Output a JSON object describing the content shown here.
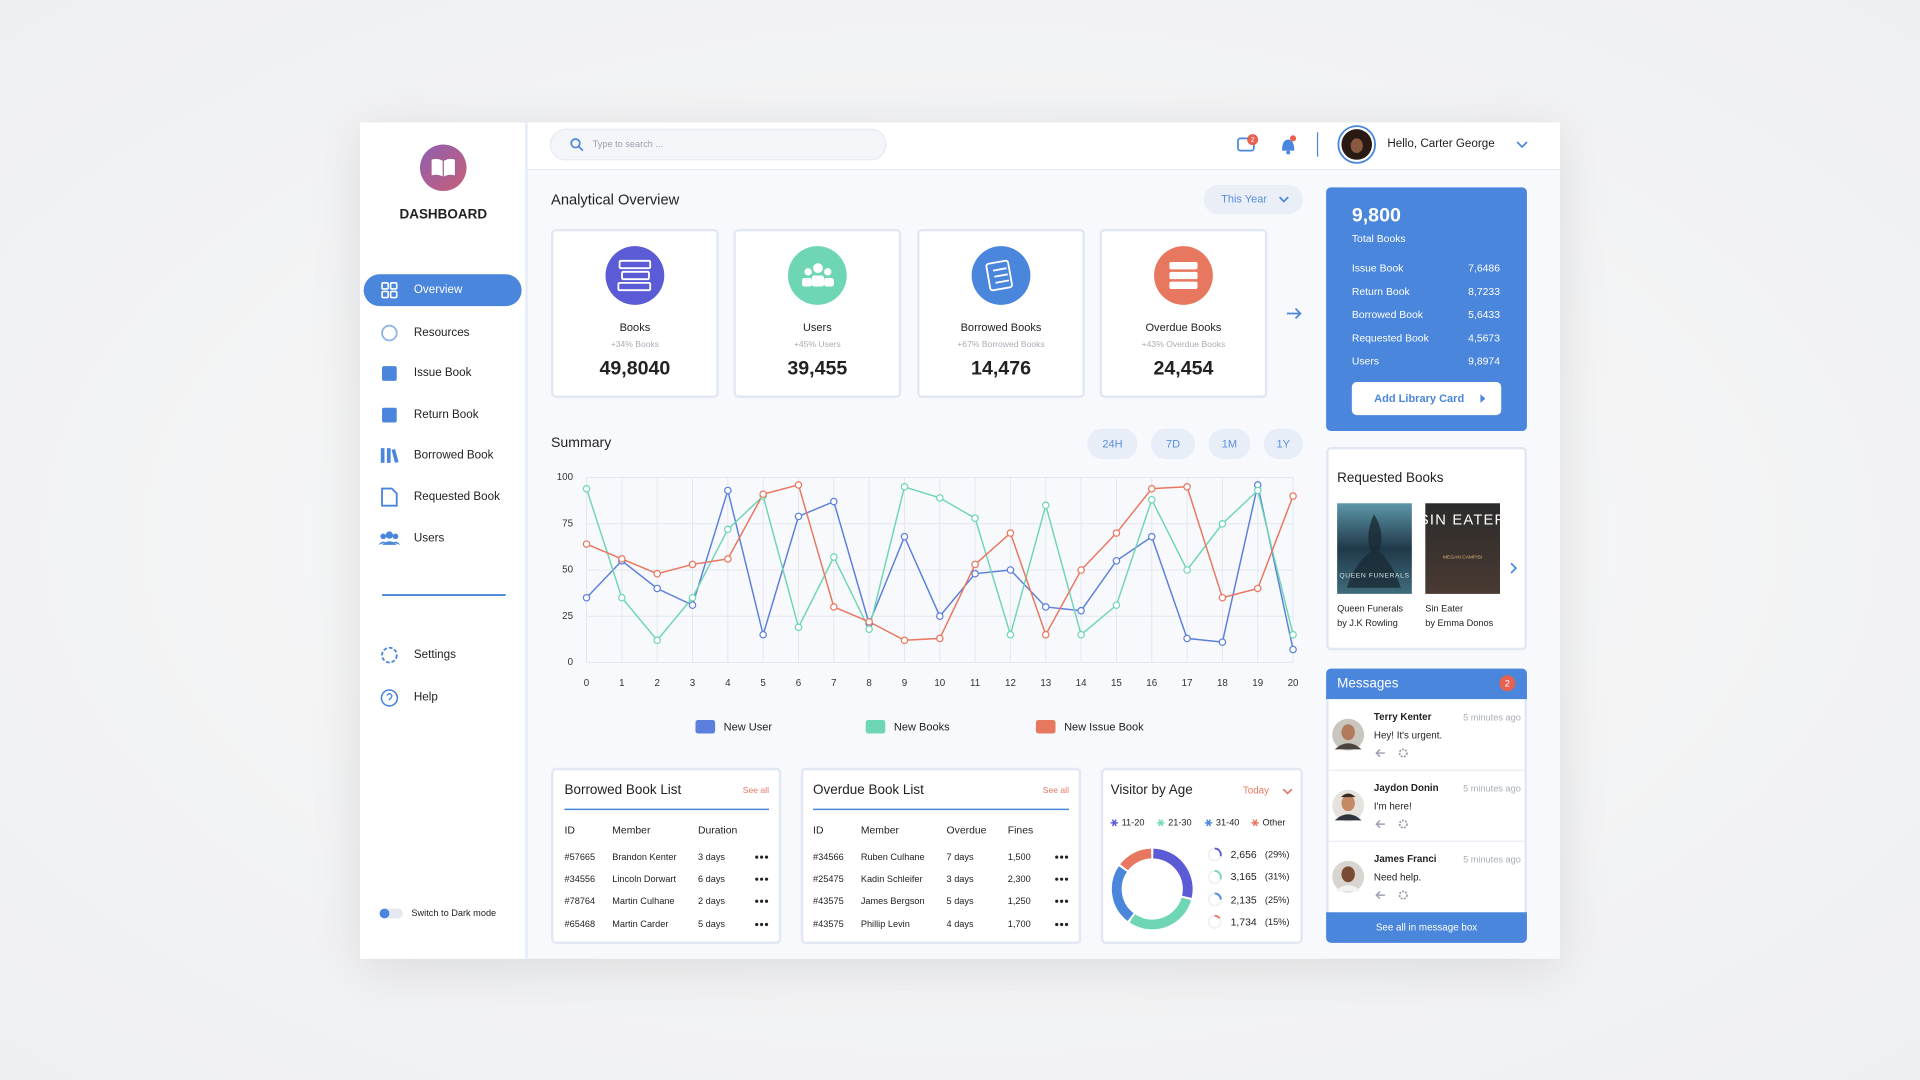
{
  "sidebar": {
    "brand": "DASHBOARD",
    "nav": [
      "Overview",
      "Resources",
      "Issue Book",
      "Return Book",
      "Borrowed Book",
      "Requested Book",
      "Users"
    ],
    "bottom_nav": [
      "Settings",
      "Help"
    ],
    "dark_mode": "Switch to Dark mode"
  },
  "header": {
    "search_placeholder": "Type to search ...",
    "message_badge": "2",
    "greeting": "Hello, Carter George"
  },
  "overview": {
    "title": "Analytical Overview",
    "period": "This Year",
    "cards": [
      {
        "title": "Books",
        "change": "+34% Books",
        "value": "49,8040"
      },
      {
        "title": "Users",
        "change": "+45% Users",
        "value": "39,455"
      },
      {
        "title": "Borrowed Books",
        "change": "+67% Borrowed Books",
        "value": "14,476"
      },
      {
        "title": "Overdue Books",
        "change": "+43% Overdue Books",
        "value": "24,454"
      }
    ]
  },
  "chart_data": [
    {
      "type": "line",
      "title": "Summary",
      "periods": [
        "24H",
        "7D",
        "1M",
        "1Y"
      ],
      "x": [
        0,
        1,
        2,
        3,
        4,
        5,
        6,
        7,
        8,
        9,
        10,
        11,
        12,
        13,
        14,
        15,
        16,
        17,
        18,
        19,
        20
      ],
      "xlim": [
        0,
        20
      ],
      "xticks": [
        0,
        1,
        2,
        3,
        4,
        5,
        6,
        7,
        8,
        9,
        10,
        11,
        12,
        13,
        14,
        15,
        16,
        17,
        18,
        19,
        20
      ],
      "ylim": [
        0,
        100
      ],
      "yticks": [
        0,
        25,
        50,
        75,
        100
      ],
      "grid": true,
      "legend": "bottom",
      "series": [
        {
          "name": "New User",
          "color": "#5b7fdc",
          "values": [
            35,
            55,
            40,
            31,
            93,
            15,
            79,
            87,
            21,
            68,
            25,
            48,
            50,
            30,
            28,
            55,
            68,
            13,
            11,
            96,
            7
          ]
        },
        {
          "name": "New Books",
          "color": "#6fd6b5",
          "values": [
            94,
            35,
            12,
            35,
            72,
            90,
            19,
            57,
            18,
            95,
            89,
            78,
            15,
            85,
            15,
            31,
            88,
            50,
            75,
            93,
            15
          ]
        },
        {
          "name": "New Issue Book",
          "color": "#e8775f",
          "values": [
            64,
            56,
            48,
            53,
            56,
            91,
            96,
            30,
            22,
            12,
            13,
            53,
            70,
            15,
            50,
            70,
            94,
            95,
            35,
            40,
            90
          ]
        }
      ]
    },
    {
      "type": "pie",
      "donut": true,
      "title": "Visitor by Age",
      "period": "Today",
      "categories": [
        "11-20",
        "21-30",
        "31-40",
        "Other"
      ],
      "values": [
        29,
        31,
        25,
        15
      ],
      "value_labels": [
        "(29%)",
        "(31%)",
        "(25%)",
        "(15%)"
      ],
      "counts": [
        2656,
        3165,
        2135,
        1734
      ],
      "count_labels": [
        "2,656",
        "3,165",
        "2,135",
        "1,734"
      ],
      "colors": [
        "#5b5bd6",
        "#6fd6b5",
        "#4a86dc",
        "#e8775f"
      ]
    }
  ],
  "borrowed_list": {
    "title": "Borrowed Book List",
    "see_all": "See all",
    "columns": [
      "ID",
      "Member",
      "Duration"
    ],
    "rows": [
      [
        "#57665",
        "Brandon Kenter",
        "3 days"
      ],
      [
        "#34556",
        "Lincoln Dorwart",
        "6 days"
      ],
      [
        "#78764",
        "Martin Culhane",
        "2 days"
      ],
      [
        "#65468",
        "Martin Carder",
        "5 days"
      ]
    ]
  },
  "overdue_list": {
    "title": "Overdue Book List",
    "see_all": "See all",
    "columns": [
      "ID",
      "Member",
      "Overdue",
      "Fines"
    ],
    "rows": [
      [
        "#34566",
        "Ruben Culhane",
        "7 days",
        "1,500"
      ],
      [
        "#25475",
        "Kadin Schleifer",
        "3 days",
        "2,300"
      ],
      [
        "#43575",
        "James Bergson",
        "5 days",
        "1,250"
      ],
      [
        "#43575",
        "Phillip Levin",
        "4 days",
        "1,700"
      ]
    ]
  },
  "totals": {
    "value": "9,800",
    "label": "Total Books",
    "rows": [
      [
        "Issue Book",
        "7,6486"
      ],
      [
        "Return Book",
        "8,7233"
      ],
      [
        "Borrowed Book",
        "5,6433"
      ],
      [
        "Requested Book",
        "4,5673"
      ],
      [
        "Users",
        "9,8974"
      ]
    ],
    "button": "Add Library Card"
  },
  "requested_books": {
    "title": "Requested Books",
    "books": [
      {
        "title": "Queen Funerals",
        "author": "by J.K Rowling",
        "cover_title": "QUEEN FUNERALS"
      },
      {
        "title": "Sin Eater",
        "author": "by Emma Donos",
        "cover_title": "SIN EATER",
        "cover_author": "MEGAN CAMPISI"
      }
    ]
  },
  "messages": {
    "title": "Messages",
    "badge": "2",
    "items": [
      {
        "name": "Terry Kenter",
        "time": "5 minutes ago",
        "text": "Hey! It's urgent."
      },
      {
        "name": "Jaydon Donin",
        "time": "5 minutes ago",
        "text": "I'm here!"
      },
      {
        "name": "James Franci",
        "time": "5 minutes ago",
        "text": "Need help."
      }
    ],
    "footer": "See all in message box"
  }
}
